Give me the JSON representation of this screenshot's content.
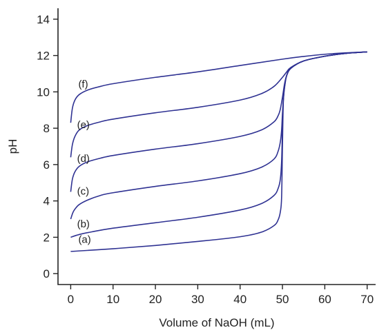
{
  "chart_data": {
    "type": "line",
    "title": "",
    "xlabel": "Volume of NaOH (mL)",
    "ylabel": "pH",
    "xlim": [
      -3,
      72
    ],
    "ylim": [
      -0.6,
      14.6
    ],
    "xticks": [
      0,
      10,
      20,
      30,
      40,
      50,
      60,
      70
    ],
    "yticks": [
      0,
      2,
      4,
      6,
      8,
      10,
      12,
      14
    ],
    "grid": false,
    "legend": "none",
    "line_color": "#2e3192",
    "series": [
      {
        "name": "(a)",
        "label": "(a)",
        "x": [
          0,
          10,
          20,
          30,
          40,
          45,
          48,
          49,
          49.5,
          49.8,
          50,
          50.2,
          50.5,
          51,
          52,
          55,
          60,
          65,
          70
        ],
        "y": [
          1.22,
          1.37,
          1.55,
          1.77,
          2.03,
          2.28,
          2.64,
          2.97,
          3.4,
          4.2,
          7.0,
          9.4,
          10.3,
          10.9,
          11.3,
          11.7,
          11.96,
          12.12,
          12.2
        ]
      },
      {
        "name": "(b)",
        "label": "(b)",
        "x": [
          0,
          2,
          5,
          10,
          20,
          30,
          40,
          45,
          48,
          49,
          49.5,
          49.8,
          50,
          50.2,
          50.5,
          51,
          52,
          55,
          60,
          65,
          70
        ],
        "y": [
          2.0,
          2.15,
          2.3,
          2.5,
          2.8,
          3.1,
          3.5,
          3.85,
          4.3,
          4.7,
          5.2,
          6.2,
          8.0,
          9.6,
          10.3,
          10.9,
          11.3,
          11.7,
          11.96,
          12.12,
          12.2
        ]
      },
      {
        "name": "(c)",
        "label": "(c)",
        "x": [
          0,
          0.5,
          1,
          2,
          4,
          7,
          10,
          20,
          30,
          40,
          45,
          48,
          49,
          49.5,
          49.8,
          50,
          50.3,
          50.6,
          51,
          52,
          55,
          60,
          65,
          70
        ],
        "y": [
          3.0,
          3.35,
          3.55,
          3.8,
          4.05,
          4.3,
          4.45,
          4.8,
          5.1,
          5.5,
          5.85,
          6.3,
          6.75,
          7.25,
          7.9,
          8.8,
          9.8,
          10.4,
          10.9,
          11.3,
          11.7,
          11.96,
          12.12,
          12.2
        ]
      },
      {
        "name": "(d)",
        "label": "(d)",
        "x": [
          0,
          0.4,
          1,
          2,
          4,
          7,
          10,
          20,
          30,
          40,
          45,
          48,
          49,
          49.5,
          50,
          50.5,
          51,
          52,
          55,
          60,
          65,
          70
        ],
        "y": [
          4.5,
          5.2,
          5.6,
          5.9,
          6.15,
          6.35,
          6.5,
          6.85,
          7.15,
          7.55,
          7.9,
          8.35,
          8.7,
          9.05,
          9.7,
          10.45,
          10.9,
          11.3,
          11.7,
          11.96,
          12.12,
          12.2
        ]
      },
      {
        "name": "(e)",
        "label": "(e)",
        "x": [
          0,
          0.4,
          1,
          2,
          4,
          7,
          10,
          20,
          30,
          40,
          45,
          48,
          50,
          51,
          52,
          55,
          60,
          65,
          70
        ],
        "y": [
          6.4,
          7.1,
          7.55,
          7.9,
          8.15,
          8.35,
          8.5,
          8.85,
          9.15,
          9.55,
          9.9,
          10.3,
          10.8,
          11.1,
          11.35,
          11.7,
          11.96,
          12.12,
          12.2
        ]
      },
      {
        "name": "(f)",
        "label": "(f)",
        "x": [
          0,
          0.4,
          1,
          2,
          4,
          7,
          10,
          20,
          30,
          40,
          50,
          55,
          60,
          65,
          70
        ],
        "y": [
          8.3,
          9.1,
          9.55,
          9.85,
          10.1,
          10.3,
          10.45,
          10.8,
          11.1,
          11.45,
          11.8,
          11.95,
          12.07,
          12.15,
          12.2
        ]
      }
    ],
    "curve_labels": [
      {
        "text": "(a)",
        "x": 1.8,
        "y": 1.7
      },
      {
        "text": "(b)",
        "x": 1.5,
        "y": 2.55
      },
      {
        "text": "(c)",
        "x": 1.5,
        "y": 4.35
      },
      {
        "text": "(d)",
        "x": 1.5,
        "y": 6.15
      },
      {
        "text": "(e)",
        "x": 1.5,
        "y": 8.0
      },
      {
        "text": "(f)",
        "x": 1.8,
        "y": 10.25
      }
    ]
  }
}
